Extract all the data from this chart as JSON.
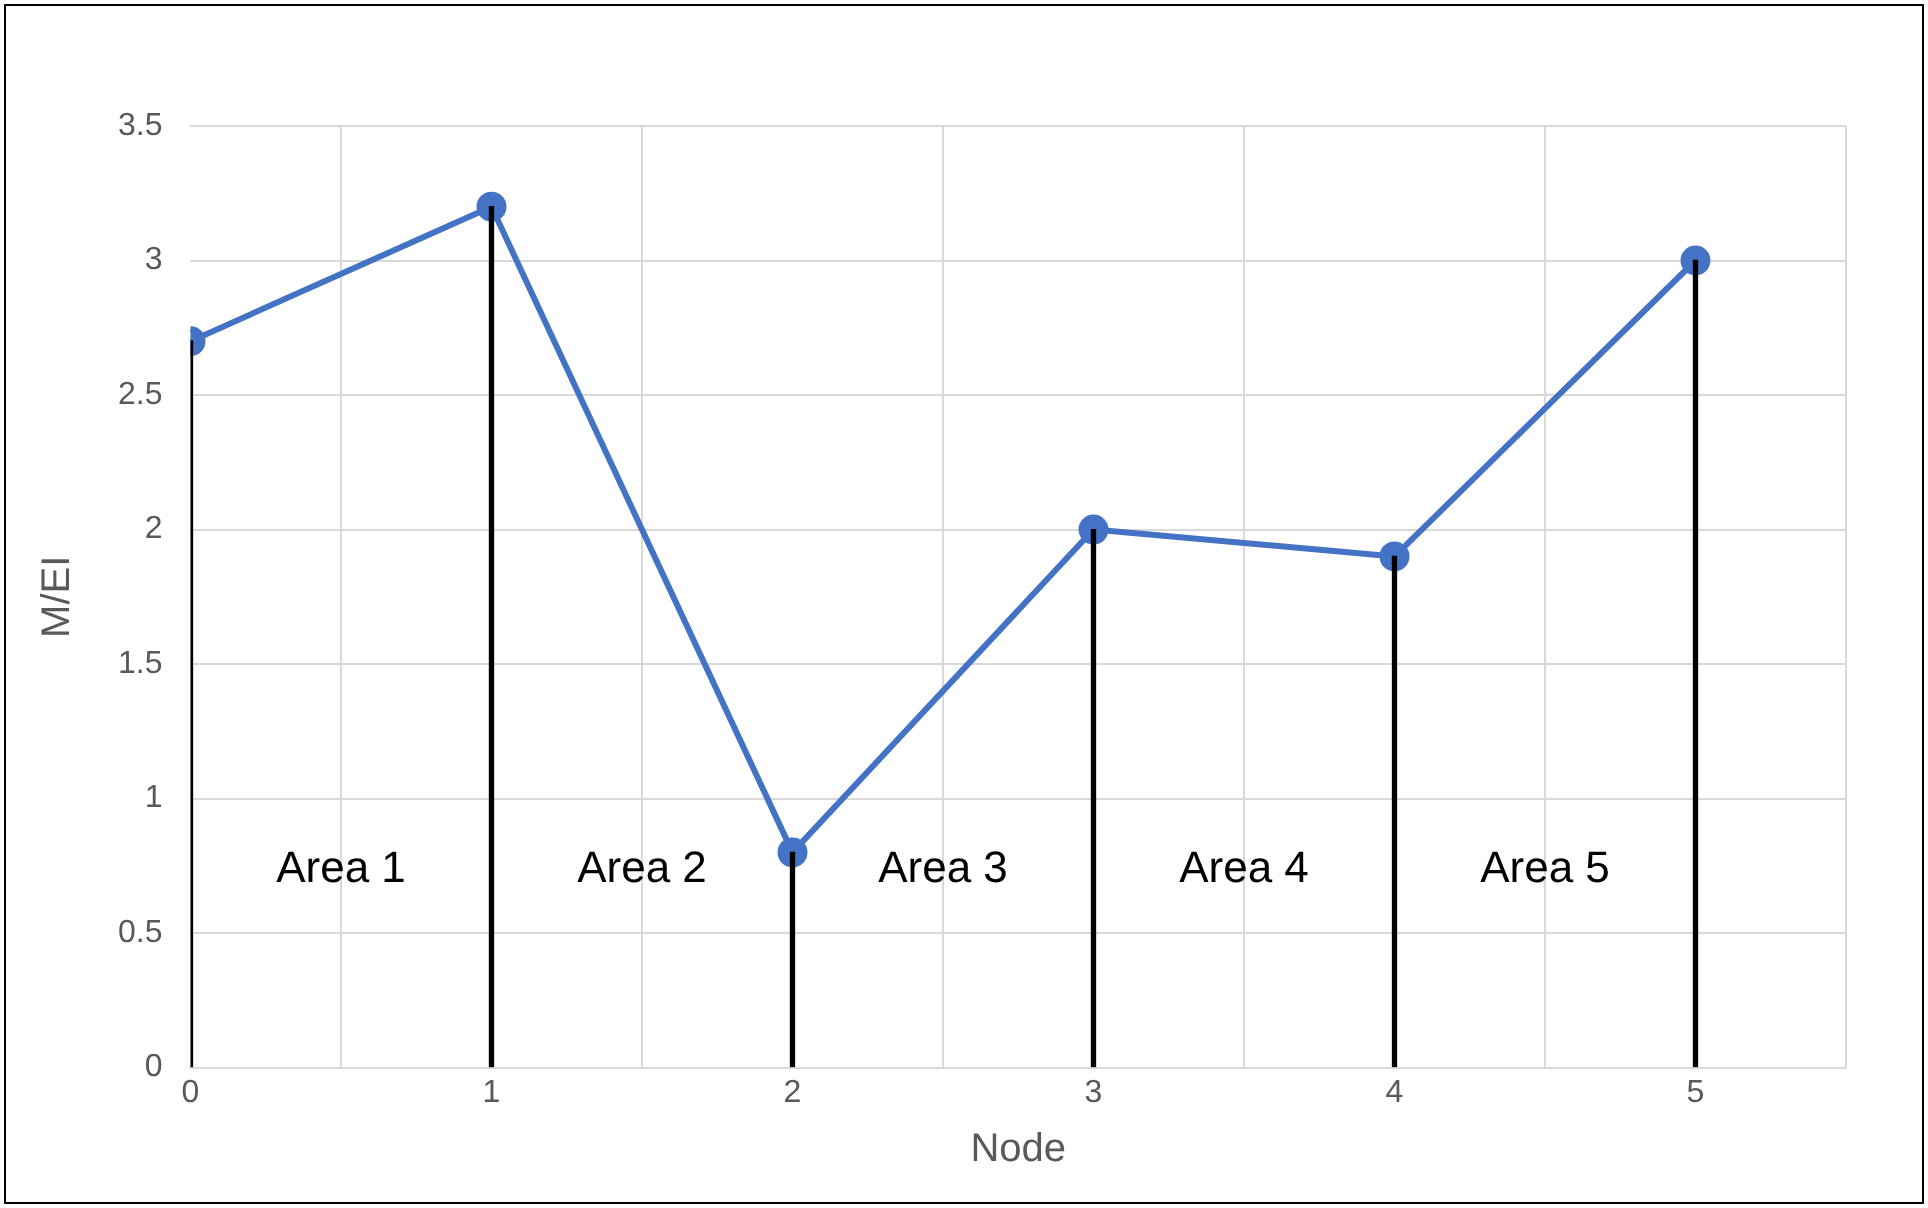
{
  "chart_data": {
    "type": "line",
    "xlabel": "Node",
    "ylabel": "M/EI",
    "x": [
      0,
      1,
      2,
      3,
      4,
      5
    ],
    "series": [
      {
        "type": "bar",
        "color": "#000000",
        "values": [
          2.7,
          3.2,
          0.8,
          2.0,
          1.9,
          3.0
        ]
      },
      {
        "color": "#4472c4",
        "values": [
          2.7,
          3.2,
          0.8,
          2.0,
          1.9,
          3.0
        ]
      }
    ],
    "xlim": [
      0,
      5.5
    ],
    "xticks": [
      0,
      1,
      2,
      3,
      4,
      5
    ],
    "ylim": [
      0,
      3.5
    ],
    "yticks": [
      0,
      0.5,
      1,
      1.5,
      2,
      2.5,
      3,
      3.5
    ],
    "grid": true,
    "legend": false,
    "marker": "circle",
    "line_style": "solid",
    "annotations": [
      "Area 1",
      "Area 2",
      "Area 3",
      "Area 4",
      "Area 5"
    ]
  }
}
